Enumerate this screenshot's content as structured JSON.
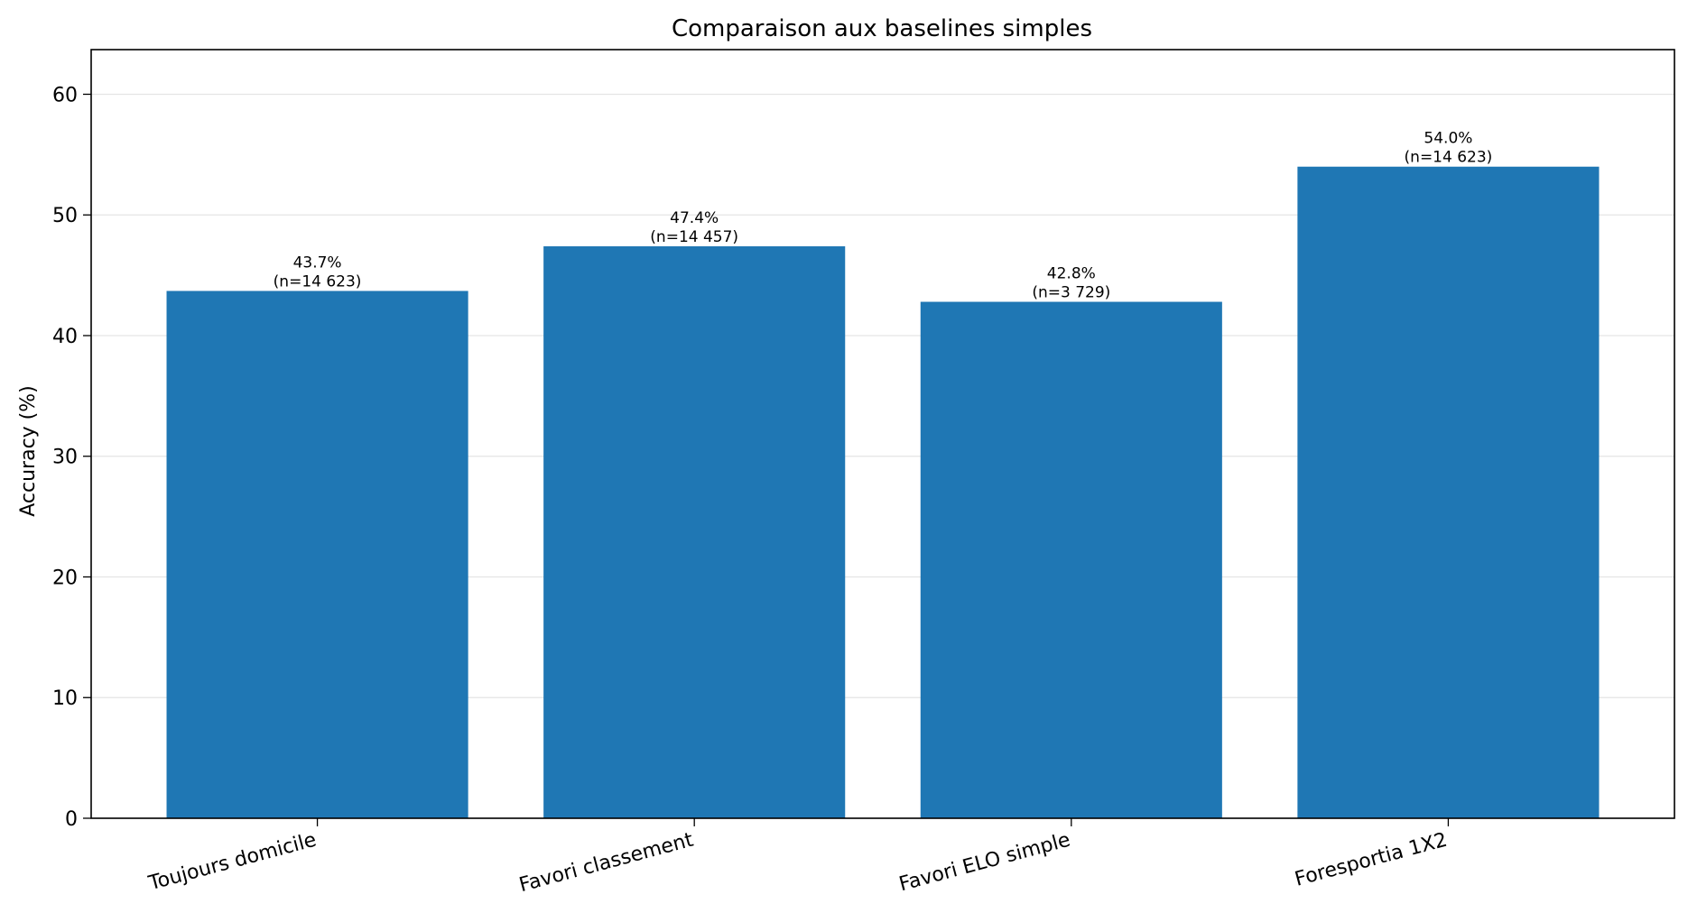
{
  "chart_data": {
    "type": "bar",
    "title": "Comparaison aux baselines simples",
    "xlabel": "",
    "ylabel": "Accuracy (%)",
    "categories": [
      "Toujours domicile",
      "Favori classement",
      "Favori ELO simple",
      "Foresportia 1X2"
    ],
    "values": [
      43.7,
      47.4,
      42.8,
      54.0
    ],
    "value_labels": [
      "43.7%",
      "47.4%",
      "42.8%",
      "54.0%"
    ],
    "n_labels": [
      "(n=14 623)",
      "(n=14 457)",
      "(n=3 729)",
      "(n=14 623)"
    ],
    "yticks": [
      "0",
      "10",
      "20",
      "30",
      "40",
      "50",
      "60"
    ],
    "ylim": [
      0,
      63.7
    ],
    "grid": true,
    "bar_color": "#1f77b4",
    "grid_color": "#e5e5e5"
  }
}
